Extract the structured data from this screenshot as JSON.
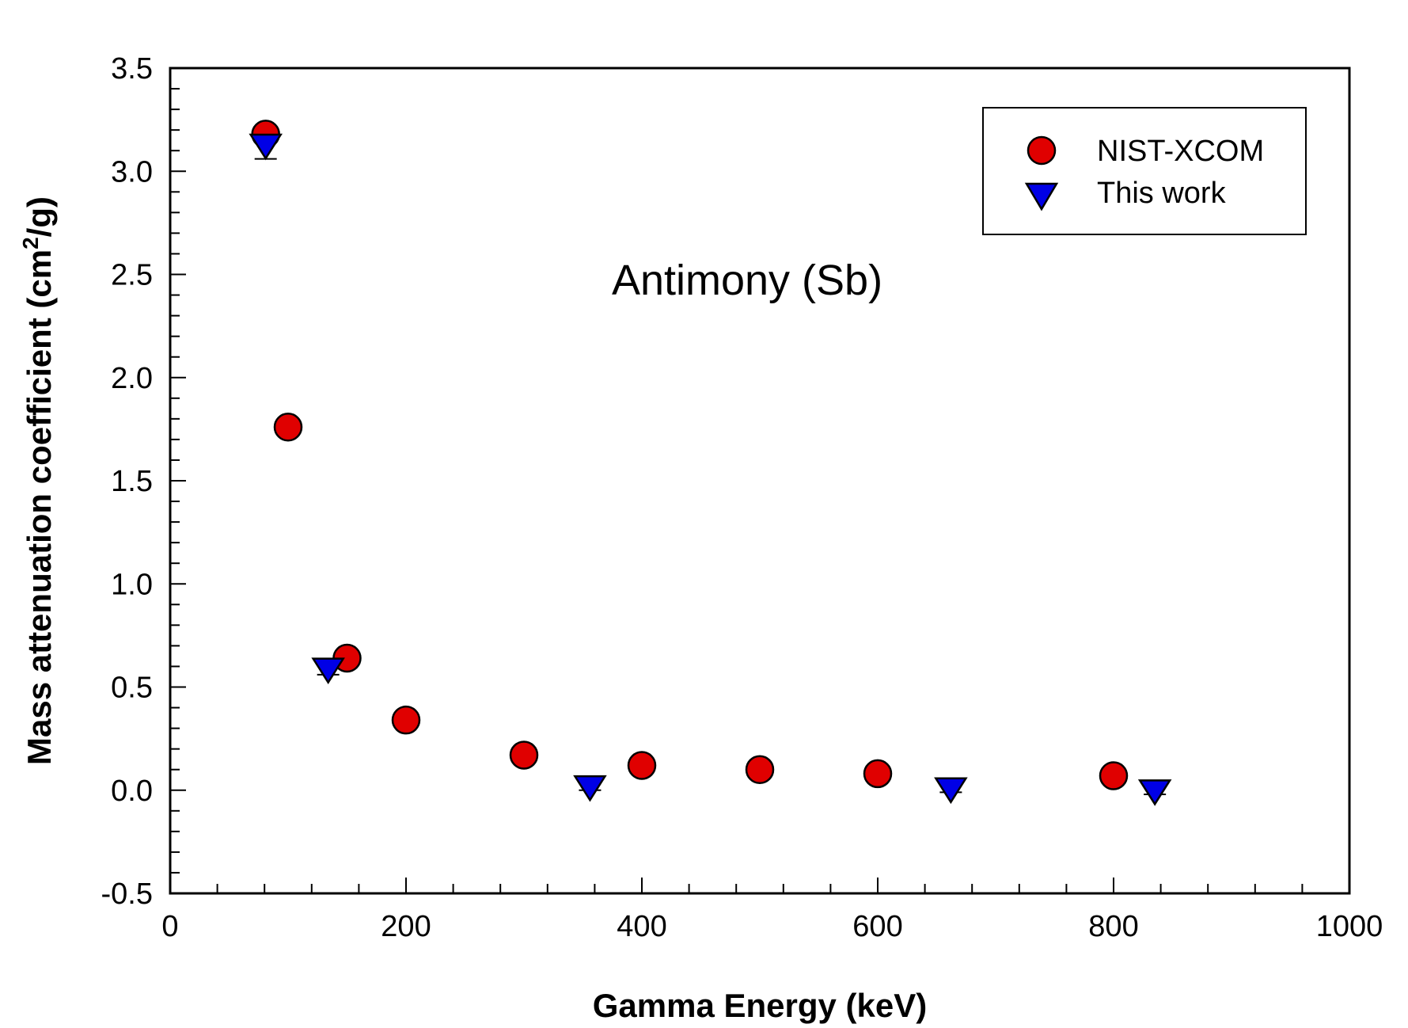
{
  "chart_data": {
    "type": "scatter",
    "xlabel": "Gamma Energy (keV)",
    "ylabel": "Mass attenuation coefficient (cm²/g)",
    "ylabel_parts": {
      "prefix": "Mass attenuation coefficient (cm",
      "superscript": "2",
      "suffix": "/g)"
    },
    "xlim": [
      0,
      1000
    ],
    "ylim": [
      -0.5,
      3.5
    ],
    "x_ticks": [
      0,
      200,
      400,
      600,
      800,
      1000
    ],
    "x_tick_labels": [
      "0",
      "200",
      "400",
      "600",
      "800",
      "1000"
    ],
    "y_ticks": [
      -0.5,
      0.0,
      0.5,
      1.0,
      1.5,
      2.0,
      2.5,
      3.0,
      3.5
    ],
    "y_tick_labels": [
      "-0.5",
      "0.0",
      "0.5",
      "1.0",
      "1.5",
      "2.0",
      "2.5",
      "3.0",
      "3.5"
    ],
    "grid": false,
    "legend_position": "top-right",
    "annotation": "Antimony (Sb)",
    "series": [
      {
        "name": "NIST-XCOM",
        "marker": "circle",
        "color": "#e00000",
        "x": [
          81,
          100,
          150,
          200,
          300,
          400,
          500,
          600,
          800
        ],
        "y": [
          3.18,
          1.76,
          0.64,
          0.34,
          0.17,
          0.12,
          0.1,
          0.08,
          0.07
        ]
      },
      {
        "name": "This work",
        "marker": "triangle-down",
        "color": "#0000e6",
        "x": [
          81,
          134,
          356,
          662,
          835
        ],
        "y": [
          3.12,
          0.58,
          0.01,
          0.0,
          -0.01
        ],
        "error": [
          0.06,
          0.02,
          0.01,
          0.01,
          0.01
        ]
      }
    ]
  }
}
